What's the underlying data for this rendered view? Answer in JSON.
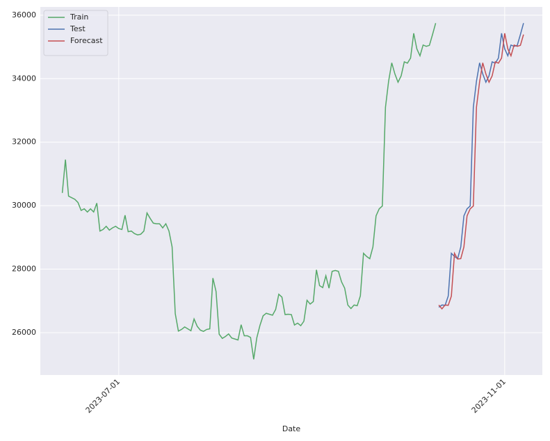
{
  "chart_data": {
    "type": "line",
    "x_label": "Date",
    "xlim": [
      "2023-06-06",
      "2023-11-13"
    ],
    "xticks": [
      "2023-07-01",
      "2023-11-01"
    ],
    "ylim": [
      24665,
      36260
    ],
    "yticks": [
      26000,
      28000,
      30000,
      32000,
      34000,
      36000
    ],
    "grid": true,
    "legend": "upper left",
    "series": [
      {
        "name": "Train",
        "color": "#55a868",
        "x": [
          "2023-06-13",
          "2023-06-14",
          "2023-06-15",
          "2023-06-16",
          "2023-06-17",
          "2023-06-18",
          "2023-06-19",
          "2023-06-20",
          "2023-06-21",
          "2023-06-22",
          "2023-06-23",
          "2023-06-24",
          "2023-06-25",
          "2023-06-26",
          "2023-06-27",
          "2023-06-28",
          "2023-06-29",
          "2023-06-30",
          "2023-07-01",
          "2023-07-02",
          "2023-07-03",
          "2023-07-04",
          "2023-07-05",
          "2023-07-06",
          "2023-07-07",
          "2023-07-08",
          "2023-07-09",
          "2023-07-10",
          "2023-07-11",
          "2023-07-12",
          "2023-07-13",
          "2023-07-14",
          "2023-07-15",
          "2023-07-16",
          "2023-07-17",
          "2023-07-18",
          "2023-07-19",
          "2023-07-20",
          "2023-07-21",
          "2023-07-22",
          "2023-07-23",
          "2023-07-24",
          "2023-07-25",
          "2023-07-26",
          "2023-07-27",
          "2023-07-28",
          "2023-07-29",
          "2023-07-30",
          "2023-07-31",
          "2023-08-01",
          "2023-08-02",
          "2023-08-03",
          "2023-08-04",
          "2023-08-05",
          "2023-08-06",
          "2023-08-07",
          "2023-08-08",
          "2023-08-09",
          "2023-08-10",
          "2023-08-11",
          "2023-08-12",
          "2023-08-13",
          "2023-08-14",
          "2023-08-15",
          "2023-08-16",
          "2023-08-17",
          "2023-08-18",
          "2023-08-19",
          "2023-08-20",
          "2023-08-21",
          "2023-08-22",
          "2023-08-23",
          "2023-08-24",
          "2023-08-25",
          "2023-08-26",
          "2023-08-27",
          "2023-08-28",
          "2023-08-29",
          "2023-08-30",
          "2023-08-31",
          "2023-09-01",
          "2023-09-02",
          "2023-09-03",
          "2023-09-04",
          "2023-09-05",
          "2023-09-06",
          "2023-09-07",
          "2023-09-08",
          "2023-09-09",
          "2023-09-10",
          "2023-09-11",
          "2023-09-12",
          "2023-09-13",
          "2023-09-14",
          "2023-09-15",
          "2023-09-16",
          "2023-09-17",
          "2023-09-18",
          "2023-09-19",
          "2023-09-20",
          "2023-09-21",
          "2023-09-22",
          "2023-09-23",
          "2023-09-24",
          "2023-09-25",
          "2023-09-26",
          "2023-09-27",
          "2023-09-28",
          "2023-09-29",
          "2023-09-30",
          "2023-10-01",
          "2023-10-02",
          "2023-10-03",
          "2023-10-04",
          "2023-10-05",
          "2023-10-06",
          "2023-10-07",
          "2023-10-08",
          "2023-10-09",
          "2023-10-10"
        ],
        "values": [
          30400,
          31450,
          30300,
          30250,
          30200,
          30100,
          29850,
          29900,
          29800,
          29900,
          29800,
          30080,
          29200,
          29250,
          29350,
          29230,
          29300,
          29350,
          29280,
          29250,
          29700,
          29180,
          29200,
          29120,
          29080,
          29100,
          29200,
          29770,
          29600,
          29450,
          29430,
          29430,
          29300,
          29430,
          29200,
          28700,
          26600,
          26050,
          26100,
          26180,
          26120,
          26060,
          26430,
          26200,
          26080,
          26040,
          26100,
          26120,
          27720,
          27300,
          25950,
          25820,
          25880,
          25960,
          25830,
          25800,
          25770,
          26250,
          25900,
          25900,
          25850,
          25160,
          25840,
          26230,
          26530,
          26610,
          26580,
          26550,
          26730,
          27210,
          27120,
          26570,
          26580,
          26570,
          26240,
          26300,
          26220,
          26360,
          27020,
          26900,
          26980,
          27980,
          27480,
          27420,
          27790,
          27400,
          27930,
          27960,
          27930,
          27600,
          27400,
          26870,
          26760,
          26870,
          26850,
          27160,
          28500,
          28400,
          28330,
          28700,
          29680,
          29900,
          29990,
          33100,
          33920,
          34500,
          34150,
          33890,
          34090,
          34530,
          34490,
          34650,
          35430,
          34940,
          34720,
          35060,
          35020,
          35050,
          35390,
          35750
        ]
      },
      {
        "name": "Test",
        "color": "#4c72b0",
        "x": [
          "2023-10-11",
          "2023-10-12",
          "2023-10-13",
          "2023-10-14",
          "2023-10-15",
          "2023-10-16",
          "2023-10-17",
          "2023-10-18",
          "2023-10-19",
          "2023-10-20",
          "2023-10-21",
          "2023-10-22",
          "2023-10-23",
          "2023-10-24",
          "2023-10-25",
          "2023-10-26",
          "2023-10-27",
          "2023-10-28",
          "2023-10-29",
          "2023-10-30",
          "2023-10-31",
          "2023-11-01",
          "2023-11-02",
          "2023-11-03",
          "2023-11-04",
          "2023-11-05",
          "2023-11-06",
          "2023-11-07"
        ],
        "values": [
          26800,
          26870,
          26860,
          27150,
          28500,
          28400,
          28330,
          28700,
          29680,
          29900,
          29990,
          33100,
          33920,
          34500,
          34150,
          33890,
          34090,
          34530,
          34490,
          34650,
          35430,
          34940,
          34720,
          35060,
          35020,
          35050,
          35390,
          35750
        ]
      },
      {
        "name": "Forecast",
        "color": "#c44e52",
        "x": [
          "2023-10-11",
          "2023-10-12",
          "2023-10-13",
          "2023-10-14",
          "2023-10-15",
          "2023-10-16",
          "2023-10-17",
          "2023-10-18",
          "2023-10-19",
          "2023-10-20",
          "2023-10-21",
          "2023-10-22",
          "2023-10-23",
          "2023-10-24",
          "2023-10-25",
          "2023-10-26",
          "2023-10-27",
          "2023-10-28",
          "2023-10-29",
          "2023-10-30",
          "2023-10-31",
          "2023-11-01",
          "2023-11-02",
          "2023-11-03",
          "2023-11-04",
          "2023-11-05",
          "2023-11-06",
          "2023-11-07"
        ],
        "values": [
          26870,
          26750,
          26870,
          26860,
          27150,
          28500,
          28320,
          28330,
          28700,
          29680,
          29900,
          29990,
          33100,
          33900,
          34500,
          34150,
          33890,
          34090,
          34530,
          34490,
          34650,
          35430,
          34940,
          34720,
          35060,
          35020,
          35050,
          35390
        ]
      }
    ]
  }
}
